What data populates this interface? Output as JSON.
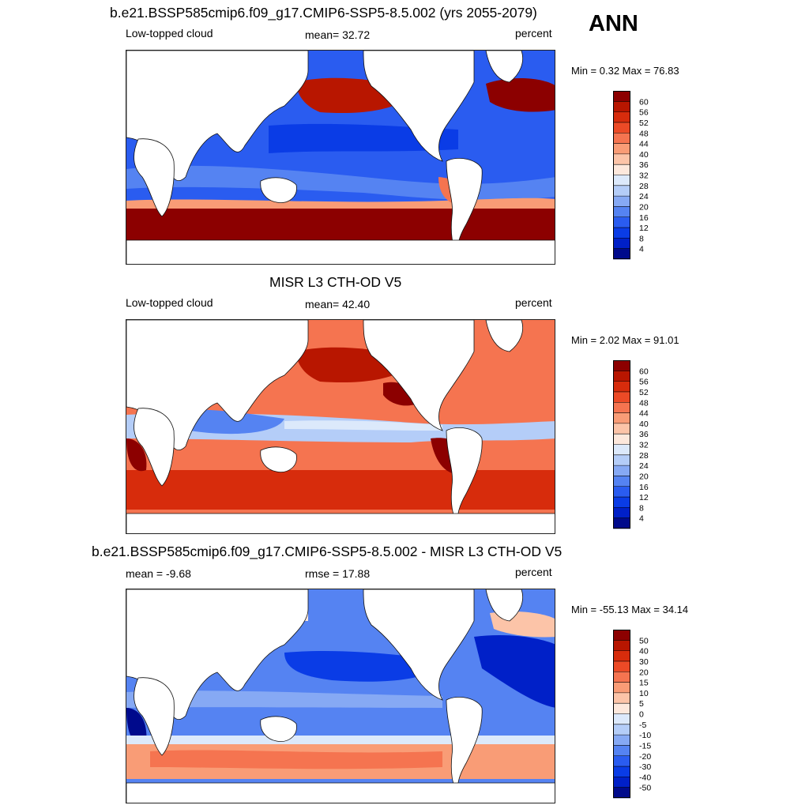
{
  "season": "ANN",
  "colors": {
    "seq": [
      "#000a8c",
      "#0020c8",
      "#0a3ce6",
      "#2a5cf0",
      "#5583f2",
      "#86a9f4",
      "#b4cdf8",
      "#dce9fb",
      "#fde8dc",
      "#fcc4a8",
      "#f99c76",
      "#f57450",
      "#ec4a26",
      "#d72c0c",
      "#b81600",
      "#8c0000"
    ],
    "div": [
      "#000a8c",
      "#0020c8",
      "#0a3ce6",
      "#2a5cf0",
      "#5583f2",
      "#86a9f4",
      "#b4cdf8",
      "#dce9fb",
      "#fde8dc",
      "#fcc4a8",
      "#f99c76",
      "#f57450",
      "#ec4a26",
      "#d72c0c",
      "#b81600",
      "#8c0000"
    ],
    "land": "#ffffff",
    "coast": "#111111"
  },
  "panels": [
    {
      "title": "b.e21.BSSP585cmip6.f09_g17.CMIP6-SSP5-8.5.002 (yrs 2055-2079)",
      "left_text": "Low-topped cloud",
      "center_text": "mean=  32.72",
      "right_text": "percent",
      "minmax": "Min =   0.32 Max =  76.83",
      "colorbar": {
        "labels": [
          "60",
          "56",
          "52",
          "48",
          "44",
          "40",
          "36",
          "32",
          "28",
          "24",
          "20",
          "16",
          "12",
          "8",
          "4"
        ]
      }
    },
    {
      "title": "MISR L3 CTH-OD V5",
      "left_text": "Low-topped cloud",
      "center_text": "mean=  42.40",
      "right_text": "percent",
      "minmax": "Min =   2.02 Max =  91.01",
      "colorbar": {
        "labels": [
          "60",
          "56",
          "52",
          "48",
          "44",
          "40",
          "36",
          "32",
          "28",
          "24",
          "20",
          "16",
          "12",
          "8",
          "4"
        ]
      }
    },
    {
      "title": "b.e21.BSSP585cmip6.f09_g17.CMIP6-SSP5-8.5.002 - MISR L3 CTH-OD V5",
      "left_text": "mean =  -9.68",
      "center_text": "rmse =  17.88",
      "right_text": "percent",
      "minmax": "Min = -55.13 Max =  34.14",
      "colorbar": {
        "labels": [
          "50",
          "40",
          "30",
          "20",
          "15",
          "10",
          "5",
          "0",
          "-5",
          "-10",
          "-15",
          "-20",
          "-30",
          "-40",
          "-50"
        ]
      }
    }
  ]
}
